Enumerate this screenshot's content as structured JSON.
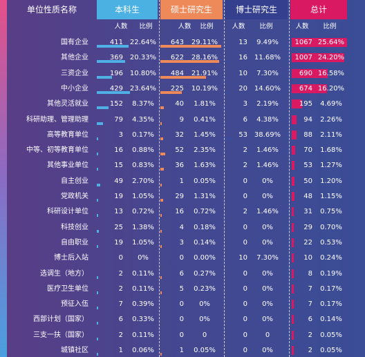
{
  "chart_data": {
    "type": "table",
    "header": {
      "category": "单位性质名称",
      "groups": [
        "本科生",
        "硕士研究生",
        "博士研究生",
        "总计"
      ],
      "count_label": "人数",
      "ratio_label": "比例"
    },
    "group_colors": [
      "#4bb0e2",
      "#ee8a5a",
      "#34408d",
      "#d91a63"
    ],
    "bar_colors": [
      "#4fb0e6",
      "#ee8a5a",
      "#3d4c9a",
      "#d91a63"
    ],
    "rows": [
      {
        "name": "国有企业",
        "undergrad": [
          411,
          "22.64%"
        ],
        "master": [
          643,
          "29.11%"
        ],
        "phd": [
          13,
          "9.49%"
        ],
        "total": [
          1067,
          "25.64%"
        ]
      },
      {
        "name": "其他企业",
        "undergrad": [
          369,
          "20.33%"
        ],
        "master": [
          622,
          "28.16%"
        ],
        "phd": [
          16,
          "11.68%"
        ],
        "total": [
          1007,
          "24.20%"
        ]
      },
      {
        "name": "三资企业",
        "undergrad": [
          196,
          "10.80%"
        ],
        "master": [
          484,
          "21.91%"
        ],
        "phd": [
          10,
          "7.30%"
        ],
        "total": [
          690,
          "16.58%"
        ]
      },
      {
        "name": "中小企业",
        "undergrad": [
          429,
          "23.64%"
        ],
        "master": [
          225,
          "10.19%"
        ],
        "phd": [
          20,
          "14.60%"
        ],
        "total": [
          674,
          "16.20%"
        ]
      },
      {
        "name": "其他灵活就业",
        "undergrad": [
          152,
          "8.37%"
        ],
        "master": [
          40,
          "1.81%"
        ],
        "phd": [
          3,
          "2.19%"
        ],
        "total": [
          195,
          "4.69%"
        ]
      },
      {
        "name": "科研助理、管理助理",
        "undergrad": [
          79,
          "4.35%"
        ],
        "master": [
          9,
          "0.41%"
        ],
        "phd": [
          6,
          "4.38%"
        ],
        "total": [
          94,
          "2.26%"
        ]
      },
      {
        "name": "高等教育单位",
        "undergrad": [
          3,
          "0.17%"
        ],
        "master": [
          32,
          "1.45%"
        ],
        "phd": [
          53,
          "38.69%"
        ],
        "total": [
          88,
          "2.11%"
        ]
      },
      {
        "name": "中等、初等教育单位",
        "undergrad": [
          16,
          "0.88%"
        ],
        "master": [
          52,
          "2.35%"
        ],
        "phd": [
          2,
          "1.46%"
        ],
        "total": [
          70,
          "1.68%"
        ]
      },
      {
        "name": "其他事业单位",
        "undergrad": [
          15,
          "0.83%"
        ],
        "master": [
          36,
          "1.63%"
        ],
        "phd": [
          2,
          "1.46%"
        ],
        "total": [
          53,
          "1.27%"
        ]
      },
      {
        "name": "自主创业",
        "undergrad": [
          49,
          "2.70%"
        ],
        "master": [
          1,
          "0.05%"
        ],
        "phd": [
          0,
          "0%"
        ],
        "total": [
          50,
          "1.20%"
        ]
      },
      {
        "name": "党政机关",
        "undergrad": [
          19,
          "1.05%"
        ],
        "master": [
          29,
          "1.31%"
        ],
        "phd": [
          0,
          "0%"
        ],
        "total": [
          48,
          "1.15%"
        ]
      },
      {
        "name": "科研设计单位",
        "undergrad": [
          13,
          "0.72%"
        ],
        "master": [
          16,
          "0.72%"
        ],
        "phd": [
          2,
          "1.46%"
        ],
        "total": [
          31,
          "0.75%"
        ]
      },
      {
        "name": "科技创业",
        "undergrad": [
          25,
          "1.38%"
        ],
        "master": [
          4,
          "0.18%"
        ],
        "phd": [
          0,
          "0%"
        ],
        "total": [
          29,
          "0.70%"
        ]
      },
      {
        "name": "自由职业",
        "undergrad": [
          19,
          "1.05%"
        ],
        "master": [
          3,
          "0.14%"
        ],
        "phd": [
          0,
          "0%"
        ],
        "total": [
          22,
          "0.53%"
        ]
      },
      {
        "name": "博士后入站",
        "undergrad": [
          0,
          "0%"
        ],
        "master": [
          0,
          "0.00%"
        ],
        "phd": [
          10,
          "7.30%"
        ],
        "total": [
          10,
          "0.24%"
        ]
      },
      {
        "name": "选调生（地方）",
        "undergrad": [
          2,
          "0.11%"
        ],
        "master": [
          6,
          "0.27%"
        ],
        "phd": [
          0,
          "0%"
        ],
        "total": [
          8,
          "0.19%"
        ]
      },
      {
        "name": "医疗卫生单位",
        "undergrad": [
          2,
          "0.11%"
        ],
        "master": [
          5,
          "0.23%"
        ],
        "phd": [
          0,
          "0%"
        ],
        "total": [
          7,
          "0.17%"
        ]
      },
      {
        "name": "预征入伍",
        "undergrad": [
          7,
          "0.39%"
        ],
        "master": [
          0,
          "0%"
        ],
        "phd": [
          0,
          "0%"
        ],
        "total": [
          7,
          "0.17%"
        ]
      },
      {
        "name": "西部计划（国家）",
        "undergrad": [
          6,
          "0.33%"
        ],
        "master": [
          0,
          "0%"
        ],
        "phd": [
          0,
          "0%"
        ],
        "total": [
          6,
          "0.14%"
        ]
      },
      {
        "name": "三支一扶（国家）",
        "undergrad": [
          2,
          "0.11%"
        ],
        "master": [
          0,
          "0"
        ],
        "phd": [
          0,
          "0"
        ],
        "total": [
          2,
          "0.05%"
        ]
      },
      {
        "name": "城镇社区",
        "undergrad": [
          1,
          "0.06%"
        ],
        "master": [
          1,
          "0.05%"
        ],
        "phd": [
          0,
          "0%"
        ],
        "total": [
          2,
          "0.05%"
        ]
      }
    ]
  }
}
